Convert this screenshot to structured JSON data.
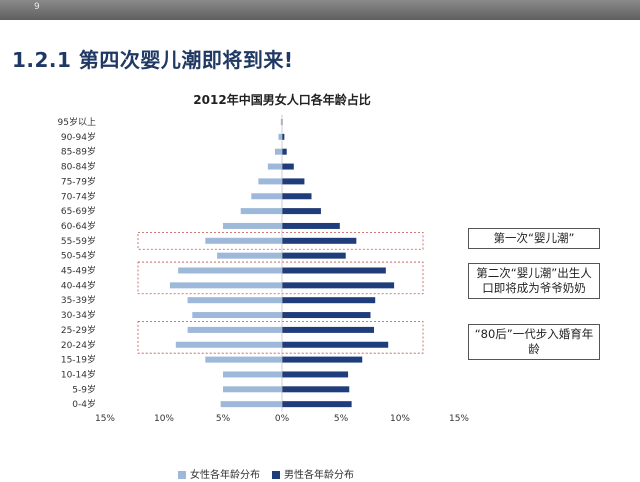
{
  "header": {
    "page_number": "9"
  },
  "section_title": "1.2.1 第四次婴儿潮即将到来!",
  "colors": {
    "female": "#9db8d9",
    "male": "#1f3d7a",
    "highlight": "#c0504d",
    "title": "#1f3864"
  },
  "chart_data": {
    "type": "bar",
    "orientation": "horizontal-population-pyramid",
    "title": "2012年中国男女人口各年龄占比",
    "categories": [
      "95岁以上",
      "90-94岁",
      "85-89岁",
      "80-84岁",
      "75-79岁",
      "70-74岁",
      "65-69岁",
      "60-64岁",
      "55-59岁",
      "50-54岁",
      "45-49岁",
      "40-44岁",
      "35-39岁",
      "30-34岁",
      "25-29岁",
      "20-24岁",
      "15-19岁",
      "10-14岁",
      "5-9岁",
      "0-4岁"
    ],
    "series": [
      {
        "name": "女性各年龄分布",
        "side": "left",
        "values": [
          0.1,
          0.3,
          0.6,
          1.2,
          2.0,
          2.6,
          3.5,
          5.0,
          6.5,
          5.5,
          8.8,
          9.5,
          8.0,
          7.6,
          8.0,
          9.0,
          6.5,
          5.0,
          5.0,
          5.2
        ]
      },
      {
        "name": "男性各年龄分布",
        "side": "right",
        "values": [
          0.05,
          0.2,
          0.4,
          1.0,
          1.9,
          2.5,
          3.3,
          4.9,
          6.3,
          5.4,
          8.8,
          9.5,
          7.9,
          7.5,
          7.8,
          9.0,
          6.8,
          5.6,
          5.7,
          5.9
        ]
      }
    ],
    "x_ticks": [
      "15%",
      "10%",
      "5%",
      "0%",
      "5%",
      "10%",
      "15%"
    ],
    "xlim": [
      -15,
      15
    ],
    "highlights": [
      {
        "categories": [
          "55-59岁"
        ],
        "note": "第一次“婴儿潮”"
      },
      {
        "categories": [
          "45-49岁",
          "40-44岁"
        ],
        "note": "第二次“婴儿潮”出生人口即将成为爷爷奶奶"
      },
      {
        "categories": [
          "25-29岁",
          "20-24岁"
        ],
        "note": "“80后”一代步入婚育年龄"
      }
    ]
  },
  "legend": {
    "female_label": "女性各年龄分布",
    "male_label": "男性各年龄分布"
  }
}
